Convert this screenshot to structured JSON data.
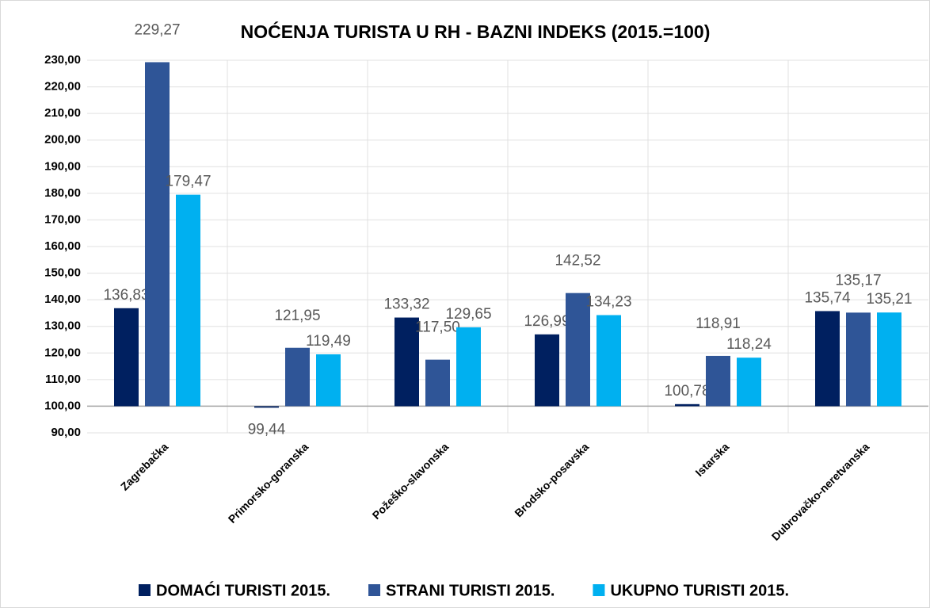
{
  "chart_data": {
    "type": "bar",
    "title": "NOĆENJA TURISTA U RH - BAZNI INDEKS (2015.=100)",
    "categories": [
      "Zagrebačka",
      "Primorsko-goranska",
      "Požeško-slavonska",
      "Brodsko-posavska",
      "Istarska",
      "Dubrovačko-neretvanska"
    ],
    "series": [
      {
        "name": "DOMAĆI TURISTI 2015.",
        "color": "#002060",
        "values": [
          136.83,
          99.44,
          133.32,
          126.99,
          100.78,
          135.74
        ],
        "value_labels": [
          "136,83",
          "99,44",
          "133,32",
          "126,99",
          "100,78",
          "135,74"
        ]
      },
      {
        "name": "STRANI TURISTI 2015.",
        "color": "#2f5597",
        "values": [
          229.27,
          121.95,
          117.5,
          142.52,
          118.91,
          135.17
        ],
        "value_labels": [
          "229,27",
          "121,95",
          "117,50",
          "142,52",
          "118,91",
          "135,17"
        ]
      },
      {
        "name": "UKUPNO TURISTI 2015.",
        "color": "#00b0f0",
        "values": [
          179.47,
          119.49,
          129.65,
          134.23,
          118.24,
          135.21
        ],
        "value_labels": [
          "179,47",
          "119,49",
          "129,65",
          "134,23",
          "118,24",
          "135,21"
        ]
      }
    ],
    "ylim": [
      90,
      230
    ],
    "yticks": [
      {
        "value": 90,
        "label": "90,00"
      },
      {
        "value": 100,
        "label": "100,00"
      },
      {
        "value": 110,
        "label": "110,00"
      },
      {
        "value": 120,
        "label": "120,00"
      },
      {
        "value": 130,
        "label": "130,00"
      },
      {
        "value": 140,
        "label": "140,00"
      },
      {
        "value": 150,
        "label": "150,00"
      },
      {
        "value": 160,
        "label": "160,00"
      },
      {
        "value": 170,
        "label": "170,00"
      },
      {
        "value": 180,
        "label": "180,00"
      },
      {
        "value": 190,
        "label": "190,00"
      },
      {
        "value": 200,
        "label": "200,00"
      },
      {
        "value": 210,
        "label": "210,00"
      },
      {
        "value": 220,
        "label": "220,00"
      },
      {
        "value": 230,
        "label": "230,00"
      }
    ],
    "axis_crosses_at": 100,
    "grid": true,
    "legend": "bottom"
  }
}
